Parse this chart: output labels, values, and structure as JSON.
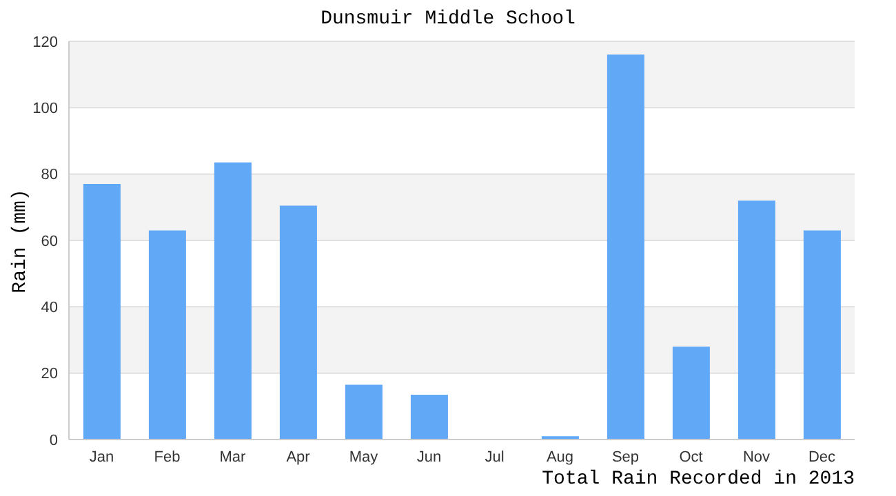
{
  "chart_data": {
    "type": "bar",
    "title": "Dunsmuir Middle School",
    "xlabel": "Total Rain Recorded in 2013",
    "ylabel": "Rain (mm)",
    "categories": [
      "Jan",
      "Feb",
      "Mar",
      "Apr",
      "May",
      "Jun",
      "Jul",
      "Aug",
      "Sep",
      "Oct",
      "Nov",
      "Dec"
    ],
    "values": [
      77,
      63,
      83.5,
      70.5,
      16.5,
      13.5,
      0,
      1,
      116,
      28,
      72,
      63
    ],
    "color": "#61a8f6",
    "ylim": [
      0,
      120
    ],
    "yticks": [
      0,
      20,
      40,
      60,
      80,
      100,
      120
    ],
    "grid": "y"
  }
}
